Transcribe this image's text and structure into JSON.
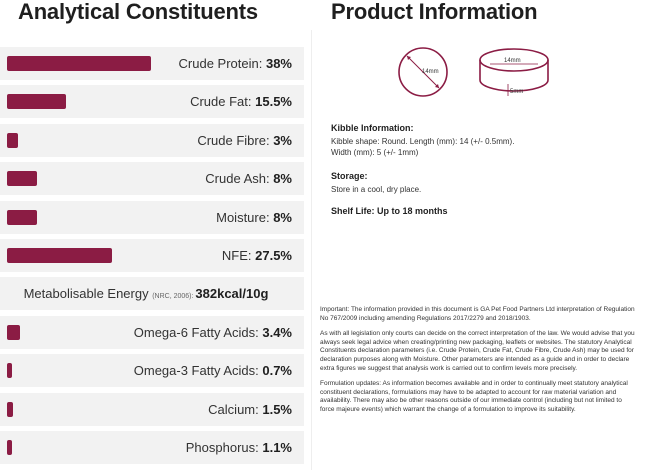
{
  "left": {
    "title": "Analytical Constituents",
    "rows": [
      {
        "label": "Crude Protein:",
        "value": "38%",
        "percent": 38
      },
      {
        "label": "Crude Fat:",
        "value": "15.5%",
        "percent": 15.5
      },
      {
        "label": "Crude Fibre:",
        "value": "3%",
        "percent": 3
      },
      {
        "label": "Crude Ash:",
        "value": "8%",
        "percent": 8
      },
      {
        "label": "Moisture:",
        "value": "8%",
        "percent": 8
      },
      {
        "label": "NFE:",
        "value": "27.5%",
        "percent": 27.5
      }
    ],
    "energy": {
      "label": "Metabolisable Energy",
      "note": "(NRC, 2006):",
      "value": "382kcal/10g"
    },
    "rows2": [
      {
        "label": "Omega-6 Fatty Acids:",
        "value": "3.4%",
        "percent": 3.4
      },
      {
        "label": "Omega-3 Fatty Acids:",
        "value": "0.7%",
        "percent": 0.7
      },
      {
        "label": "Calcium:",
        "value": "1.5%",
        "percent": 1.5
      },
      {
        "label": "Phosphorus:",
        "value": "1.1%",
        "percent": 1.1
      }
    ],
    "bar_color": "#8b1c44"
  },
  "right": {
    "title": "Product Information",
    "kibble_diameter_label": "14mm",
    "kibble_length_label": "14mm",
    "kibble_width_label": "5mm",
    "kibble_info_heading": "Kibble Information:",
    "kibble_info_line1": "Kibble shape: Round. Length (mm): 14 (+/- 0.5mm).",
    "kibble_info_line2": "Width (mm): 5 (+/- 1mm)",
    "storage_heading": "Storage:",
    "storage_text": "Store in a cool, dry place.",
    "shelf_life": "Shelf Life: Up to 18 months",
    "disclaimer_p1": "Important: The information provided in this document is GA Pet Food Partners Ltd interpretation of Regulation No 767/2009 including amending Regulations 2017/2279 and 2018/1903.",
    "disclaimer_p2": "As with all legislation only courts can decide on the correct interpretation of the law. We would advise that you always seek legal advice when creating/printing new packaging, leaflets  or websites. The statutory Analytical Constituents declaration parameters (i.e. Crude Protein, Crude Fat, Crude Fibre, Crude Ash) may be used for declaration purposes along with Moisture. Other parameters are intended as a guide and in order to declare extra figures we suggest that analysis work is carried out to confirm levels more precisely.",
    "disclaimer_p3": "Formulation updates: As information becomes available and in order to continually meet statutory analytical constituent declarations, formulations may have to be adapted to account for raw material variation and availability. There may also be other reasons outside of our immediate control (including but not limited to force majeure events) which warrant the change of a formulation to improve its suitability."
  }
}
